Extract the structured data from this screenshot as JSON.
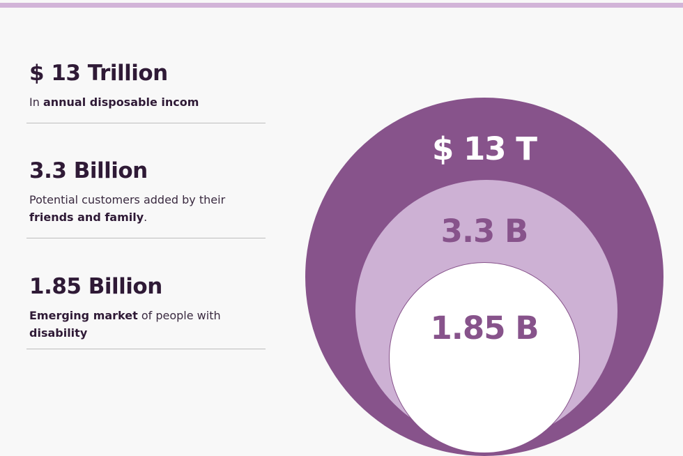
{
  "colors": {
    "top_bar": "#d2b4d8",
    "outer_circle": "#87538b",
    "middle_circle": "#cdb1d4",
    "inner_circle": "#ffffff",
    "heading_text": "#2f1a36"
  },
  "stats": [
    {
      "title": "$ 13 Trillion",
      "desc_prefix": "In ",
      "desc_bold": "annual disposable incom",
      "desc_suffix": ""
    },
    {
      "title": "3.3 Billion",
      "desc_prefix": "Potential customers added by their ",
      "desc_bold": "friends and family",
      "desc_suffix": "."
    },
    {
      "title": "1.85 Billion",
      "desc_bold": "Emerging market",
      "desc_suffix": " of people with ",
      "desc_bold2": "disability"
    }
  ],
  "rings": {
    "outer_label": "$ 13 T",
    "middle_label": "3.3 B",
    "inner_label": "1.85 B"
  }
}
